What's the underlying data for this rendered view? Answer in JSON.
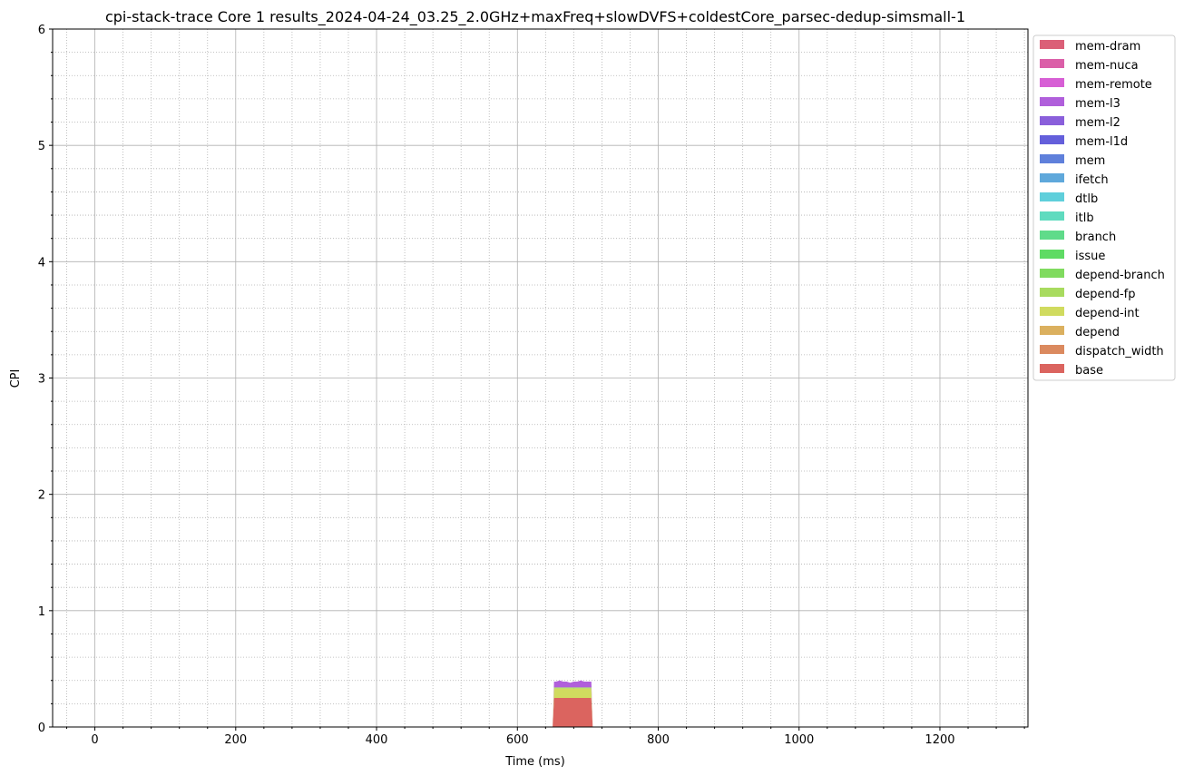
{
  "chart_data": {
    "type": "area",
    "title": "cpi-stack-trace Core 1 results_2024-04-24_03.25_2.0GHz+maxFreq+slowDVFS+coldestCore_parsec-dedup-simsmall-1",
    "xlabel": "Time (ms)",
    "ylabel": "CPI",
    "xlim": [
      -60,
      1325
    ],
    "ylim": [
      0,
      6
    ],
    "x_ticks": [
      0,
      200,
      400,
      600,
      800,
      1000,
      1200
    ],
    "y_ticks": [
      0,
      1,
      2,
      3,
      4,
      5,
      6
    ],
    "grid": "major solid, minor dotted",
    "legend_placement": "outside-top-right",
    "x": [
      650,
      652,
      655,
      660,
      665,
      670,
      675,
      680,
      685,
      690,
      695,
      700,
      705,
      707,
      710
    ],
    "series": [
      {
        "name": "mem-dram",
        "color": "#db5f77",
        "values": [
          0,
          0,
          0,
          0,
          0,
          0,
          0,
          0,
          0,
          0,
          0,
          0,
          0,
          0,
          0
        ]
      },
      {
        "name": "mem-nuca",
        "color": "#db5fa8",
        "values": [
          0,
          0,
          0,
          0,
          0,
          0,
          0,
          0,
          0,
          0,
          0,
          0,
          0,
          0,
          0
        ]
      },
      {
        "name": "mem-remote",
        "color": "#d75fd5",
        "values": [
          0,
          0,
          0,
          0,
          0,
          0,
          0,
          0,
          0,
          0,
          0,
          0,
          0,
          0,
          0
        ]
      },
      {
        "name": "mem-l3",
        "color": "#b05fdb",
        "values": [
          0,
          0.05,
          0.05,
          0.06,
          0.05,
          0.05,
          0.04,
          0.05,
          0.05,
          0.06,
          0.05,
          0.05,
          0.05,
          0,
          0
        ]
      },
      {
        "name": "mem-l2",
        "color": "#8a5fdb",
        "values": [
          0,
          0,
          0,
          0,
          0,
          0,
          0,
          0,
          0,
          0,
          0,
          0,
          0,
          0,
          0
        ]
      },
      {
        "name": "mem-l1d",
        "color": "#645fdb",
        "values": [
          0,
          0,
          0,
          0,
          0,
          0,
          0,
          0,
          0,
          0,
          0,
          0,
          0,
          0,
          0
        ]
      },
      {
        "name": "mem",
        "color": "#5f80db",
        "values": [
          0,
          0,
          0,
          0,
          0,
          0,
          0,
          0,
          0,
          0,
          0,
          0,
          0,
          0,
          0
        ]
      },
      {
        "name": "ifetch",
        "color": "#5fa8db",
        "values": [
          0,
          0,
          0,
          0,
          0,
          0,
          0,
          0,
          0,
          0,
          0,
          0,
          0,
          0,
          0
        ]
      },
      {
        "name": "dtlb",
        "color": "#5fcfdb",
        "values": [
          0,
          0,
          0,
          0,
          0,
          0,
          0,
          0,
          0,
          0,
          0,
          0,
          0,
          0,
          0
        ]
      },
      {
        "name": "itlb",
        "color": "#5fdbbf",
        "values": [
          0,
          0,
          0,
          0,
          0,
          0,
          0,
          0,
          0,
          0,
          0,
          0,
          0,
          0,
          0
        ]
      },
      {
        "name": "branch",
        "color": "#5fdb8a",
        "values": [
          0,
          0,
          0,
          0,
          0,
          0,
          0,
          0,
          0,
          0,
          0,
          0,
          0,
          0,
          0
        ]
      },
      {
        "name": "issue",
        "color": "#5fdb64",
        "values": [
          0,
          0,
          0,
          0,
          0,
          0,
          0,
          0,
          0,
          0,
          0,
          0,
          0,
          0,
          0
        ]
      },
      {
        "name": "depend-branch",
        "color": "#80db5f",
        "values": [
          0,
          0,
          0,
          0,
          0,
          0,
          0,
          0,
          0,
          0,
          0,
          0,
          0,
          0,
          0
        ]
      },
      {
        "name": "depend-fp",
        "color": "#a8db5f",
        "values": [
          0,
          0.01,
          0.01,
          0.01,
          0.01,
          0.01,
          0.01,
          0.01,
          0.01,
          0.01,
          0.01,
          0.01,
          0.01,
          0,
          0
        ]
      },
      {
        "name": "depend-int",
        "color": "#d0db5f",
        "values": [
          0,
          0.08,
          0.08,
          0.08,
          0.08,
          0.08,
          0.08,
          0.08,
          0.08,
          0.08,
          0.08,
          0.08,
          0.08,
          0,
          0
        ]
      },
      {
        "name": "depend",
        "color": "#dbb05f",
        "values": [
          0,
          0,
          0,
          0,
          0,
          0,
          0,
          0,
          0,
          0,
          0,
          0,
          0,
          0,
          0
        ]
      },
      {
        "name": "dispatch_width",
        "color": "#db8a5f",
        "values": [
          0,
          0,
          0,
          0,
          0,
          0,
          0,
          0,
          0,
          0,
          0,
          0,
          0,
          0,
          0
        ]
      },
      {
        "name": "base",
        "color": "#db645f",
        "values": [
          0,
          0.25,
          0.25,
          0.25,
          0.25,
          0.25,
          0.25,
          0.25,
          0.25,
          0.25,
          0.25,
          0.25,
          0.25,
          0,
          0
        ]
      }
    ]
  }
}
